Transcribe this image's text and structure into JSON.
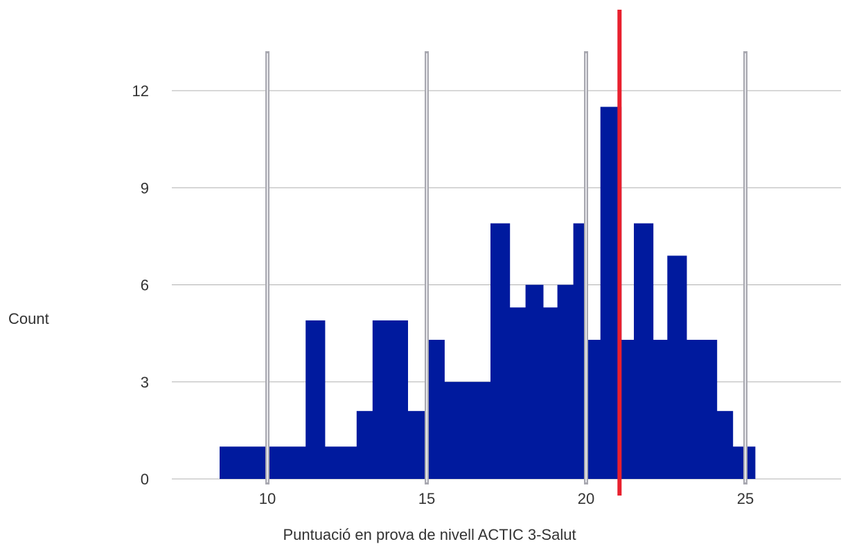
{
  "chart_data": {
    "type": "bar",
    "title": "",
    "xlabel": "Puntuació en prova de nivell ACTIC 3-Salut",
    "ylabel": "Count",
    "xlim": [
      7,
      28
    ],
    "ylim": [
      0,
      12
    ],
    "x_ticks": [
      10,
      15,
      20,
      25
    ],
    "y_ticks": [
      0,
      3,
      6,
      9,
      12
    ],
    "grid": "horizontal",
    "bins": [
      {
        "x0": 8.5,
        "x1": 11.2,
        "count": 1
      },
      {
        "x0": 11.2,
        "x1": 11.8,
        "count": 4.9
      },
      {
        "x0": 11.8,
        "x1": 12.8,
        "count": 1
      },
      {
        "x0": 12.8,
        "x1": 13.3,
        "count": 2.1
      },
      {
        "x0": 13.3,
        "x1": 14.4,
        "count": 4.9
      },
      {
        "x0": 14.4,
        "x1": 15.0,
        "count": 2.1
      },
      {
        "x0": 15.0,
        "x1": 15.55,
        "count": 4.3
      },
      {
        "x0": 15.55,
        "x1": 17.0,
        "count": 3.0
      },
      {
        "x0": 17.0,
        "x1": 17.6,
        "count": 7.9
      },
      {
        "x0": 17.6,
        "x1": 18.1,
        "count": 5.3
      },
      {
        "x0": 18.1,
        "x1": 18.65,
        "count": 6.0
      },
      {
        "x0": 18.65,
        "x1": 19.1,
        "count": 5.3
      },
      {
        "x0": 19.1,
        "x1": 19.6,
        "count": 6.0
      },
      {
        "x0": 19.6,
        "x1": 20.05,
        "count": 7.9
      },
      {
        "x0": 20.05,
        "x1": 20.45,
        "count": 4.3
      },
      {
        "x0": 20.45,
        "x1": 21.1,
        "count": 11.5
      },
      {
        "x0": 21.1,
        "x1": 21.5,
        "count": 4.3
      },
      {
        "x0": 21.5,
        "x1": 22.1,
        "count": 7.9
      },
      {
        "x0": 22.1,
        "x1": 22.55,
        "count": 4.3
      },
      {
        "x0": 22.55,
        "x1": 23.15,
        "count": 6.9
      },
      {
        "x0": 23.15,
        "x1": 24.1,
        "count": 4.3
      },
      {
        "x0": 24.1,
        "x1": 24.6,
        "count": 2.1
      },
      {
        "x0": 24.6,
        "x1": 25.3,
        "count": 1
      }
    ],
    "vertical_reference_lines": [
      10,
      15,
      20,
      25
    ],
    "highlight_line": {
      "x": 21.05,
      "color": "#e8202e"
    },
    "colors": {
      "bars": "#001a9e",
      "reference_lines": "#a8a8b0",
      "gridlines": "#b0b0b0",
      "text": "#333333"
    }
  }
}
